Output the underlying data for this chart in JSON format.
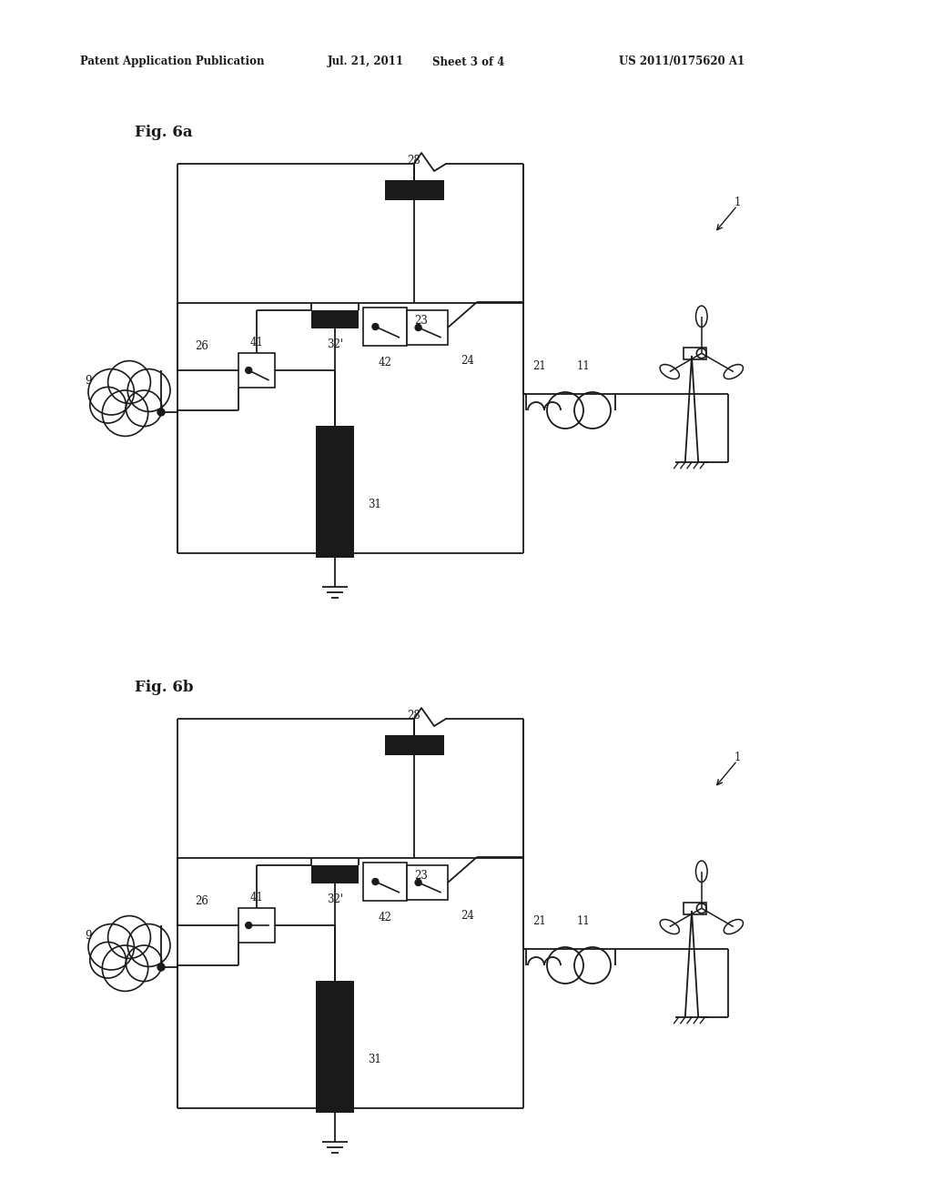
{
  "background_color": "#ffffff",
  "header_text": "Patent Application Publication",
  "header_date": "Jul. 21, 2011",
  "header_sheet": "Sheet 3 of 4",
  "header_patent": "US 2011/0175620 A1",
  "fig_a_label": "Fig. 6a",
  "fig_b_label": "Fig. 6b"
}
